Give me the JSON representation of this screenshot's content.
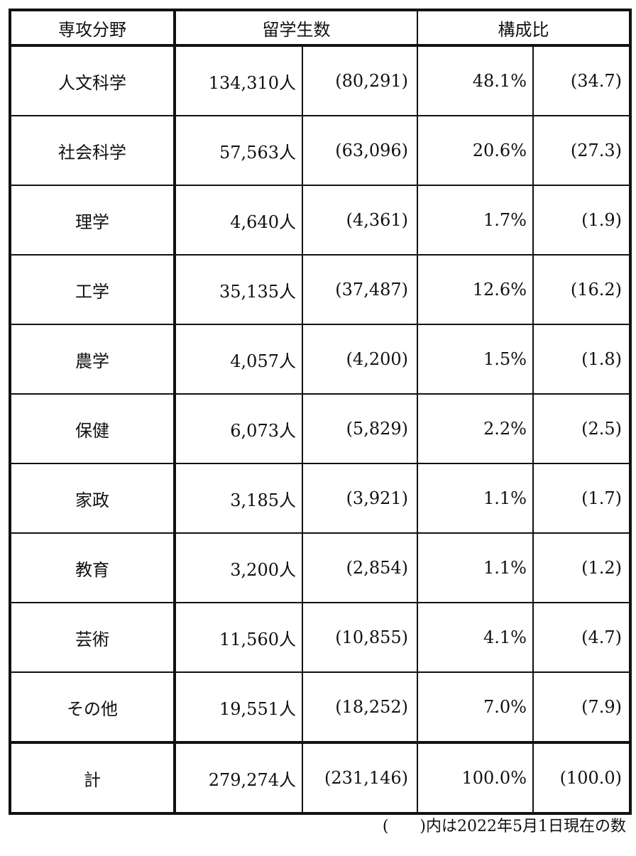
{
  "header": {
    "field": "専攻分野",
    "students": "留学生数",
    "ratio": "構成比"
  },
  "rows": [
    {
      "field": "人文科学",
      "students": "134,310人",
      "students_prev": "(80,291)",
      "ratio": "48.1%",
      "ratio_prev": "(34.7)"
    },
    {
      "field": "社会科学",
      "students": "57,563人",
      "students_prev": "(63,096)",
      "ratio": "20.6%",
      "ratio_prev": "(27.3)"
    },
    {
      "field": "理学",
      "students": "4,640人",
      "students_prev": "(4,361)",
      "ratio": "1.7%",
      "ratio_prev": "(1.9)"
    },
    {
      "field": "工学",
      "students": "35,135人",
      "students_prev": "(37,487)",
      "ratio": "12.6%",
      "ratio_prev": "(16.2)"
    },
    {
      "field": "農学",
      "students": "4,057人",
      "students_prev": "(4,200)",
      "ratio": "1.5%",
      "ratio_prev": "(1.8)"
    },
    {
      "field": "保健",
      "students": "6,073人",
      "students_prev": "(5,829)",
      "ratio": "2.2%",
      "ratio_prev": "(2.5)"
    },
    {
      "field": "家政",
      "students": "3,185人",
      "students_prev": "(3,921)",
      "ratio": "1.1%",
      "ratio_prev": "(1.7)"
    },
    {
      "field": "教育",
      "students": "3,200人",
      "students_prev": "(2,854)",
      "ratio": "1.1%",
      "ratio_prev": "(1.2)"
    },
    {
      "field": "芸術",
      "students": "11,560人",
      "students_prev": "(10,855)",
      "ratio": "4.1%",
      "ratio_prev": "(4.7)"
    },
    {
      "field": "その他",
      "students": "19,551人",
      "students_prev": "(18,252)",
      "ratio": "7.0%",
      "ratio_prev": "(7.9)"
    }
  ],
  "total": {
    "field": "計",
    "students": "279,274人",
    "students_prev": "(231,146)",
    "ratio": "100.0%",
    "ratio_prev": "(100.0)"
  },
  "note": "(　　)内は2022年5月1日現在の数"
}
